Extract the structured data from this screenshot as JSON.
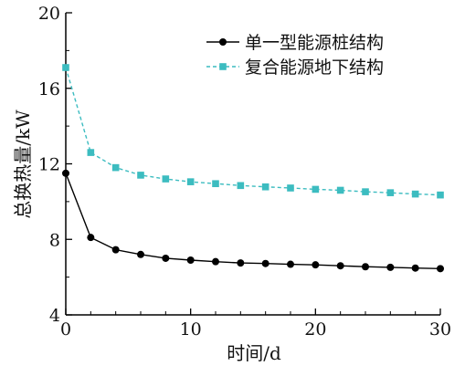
{
  "chart_data": {
    "type": "line",
    "xlabel": "时间/d",
    "ylabel": "总换热量/kW",
    "xlim": [
      0,
      30
    ],
    "ylim": [
      4,
      20
    ],
    "xticks": [
      "0",
      "10",
      "20",
      "30"
    ],
    "yticks": [
      "4",
      "8",
      "12",
      "16",
      "20"
    ],
    "grid": false,
    "legend_position": "top-right",
    "series": [
      {
        "name": "单一型能源桩结构",
        "color": "#000000",
        "line_style": "solid",
        "marker": "circle",
        "x": [
          0,
          2,
          4,
          6,
          8,
          10,
          12,
          14,
          16,
          18,
          20,
          22,
          24,
          26,
          28,
          30
        ],
        "y": [
          11.5,
          8.1,
          7.45,
          7.2,
          7.0,
          6.9,
          6.82,
          6.75,
          6.72,
          6.68,
          6.65,
          6.6,
          6.55,
          6.52,
          6.48,
          6.45
        ]
      },
      {
        "name": "复合能源地下结构",
        "color": "#3cbcc0",
        "line_style": "dashed",
        "marker": "square",
        "x": [
          0,
          2,
          4,
          6,
          8,
          10,
          12,
          14,
          16,
          18,
          20,
          22,
          24,
          26,
          28,
          30
        ],
        "y": [
          17.1,
          12.6,
          11.8,
          11.4,
          11.2,
          11.05,
          10.95,
          10.85,
          10.78,
          10.72,
          10.65,
          10.6,
          10.52,
          10.47,
          10.4,
          10.35
        ]
      }
    ]
  }
}
